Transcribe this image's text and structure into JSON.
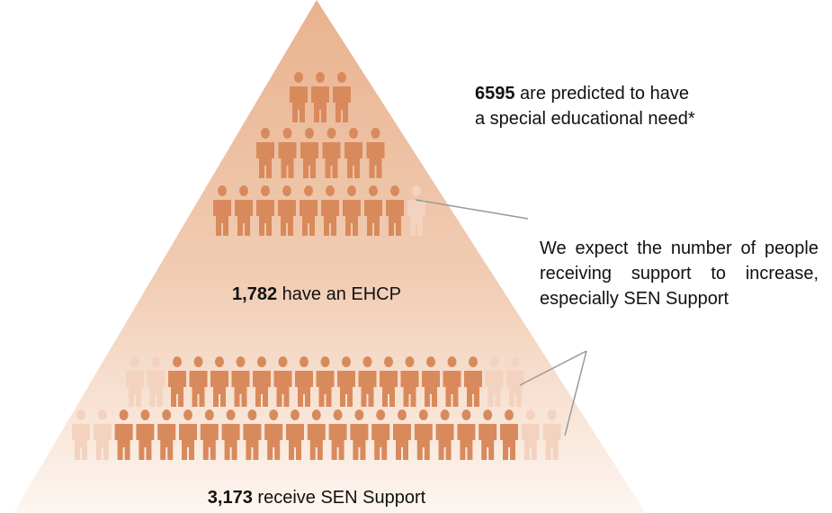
{
  "headline": {
    "number": "6595",
    "text": " are predicted to have a special educational need*"
  },
  "ehcp": {
    "number": "1,782",
    "text": " have an EHCP"
  },
  "sen_support": {
    "number": "3,173",
    "text": " receive SEN Support"
  },
  "note": "We expect the number of people receiving support to increase, especially SEN Support"
}
